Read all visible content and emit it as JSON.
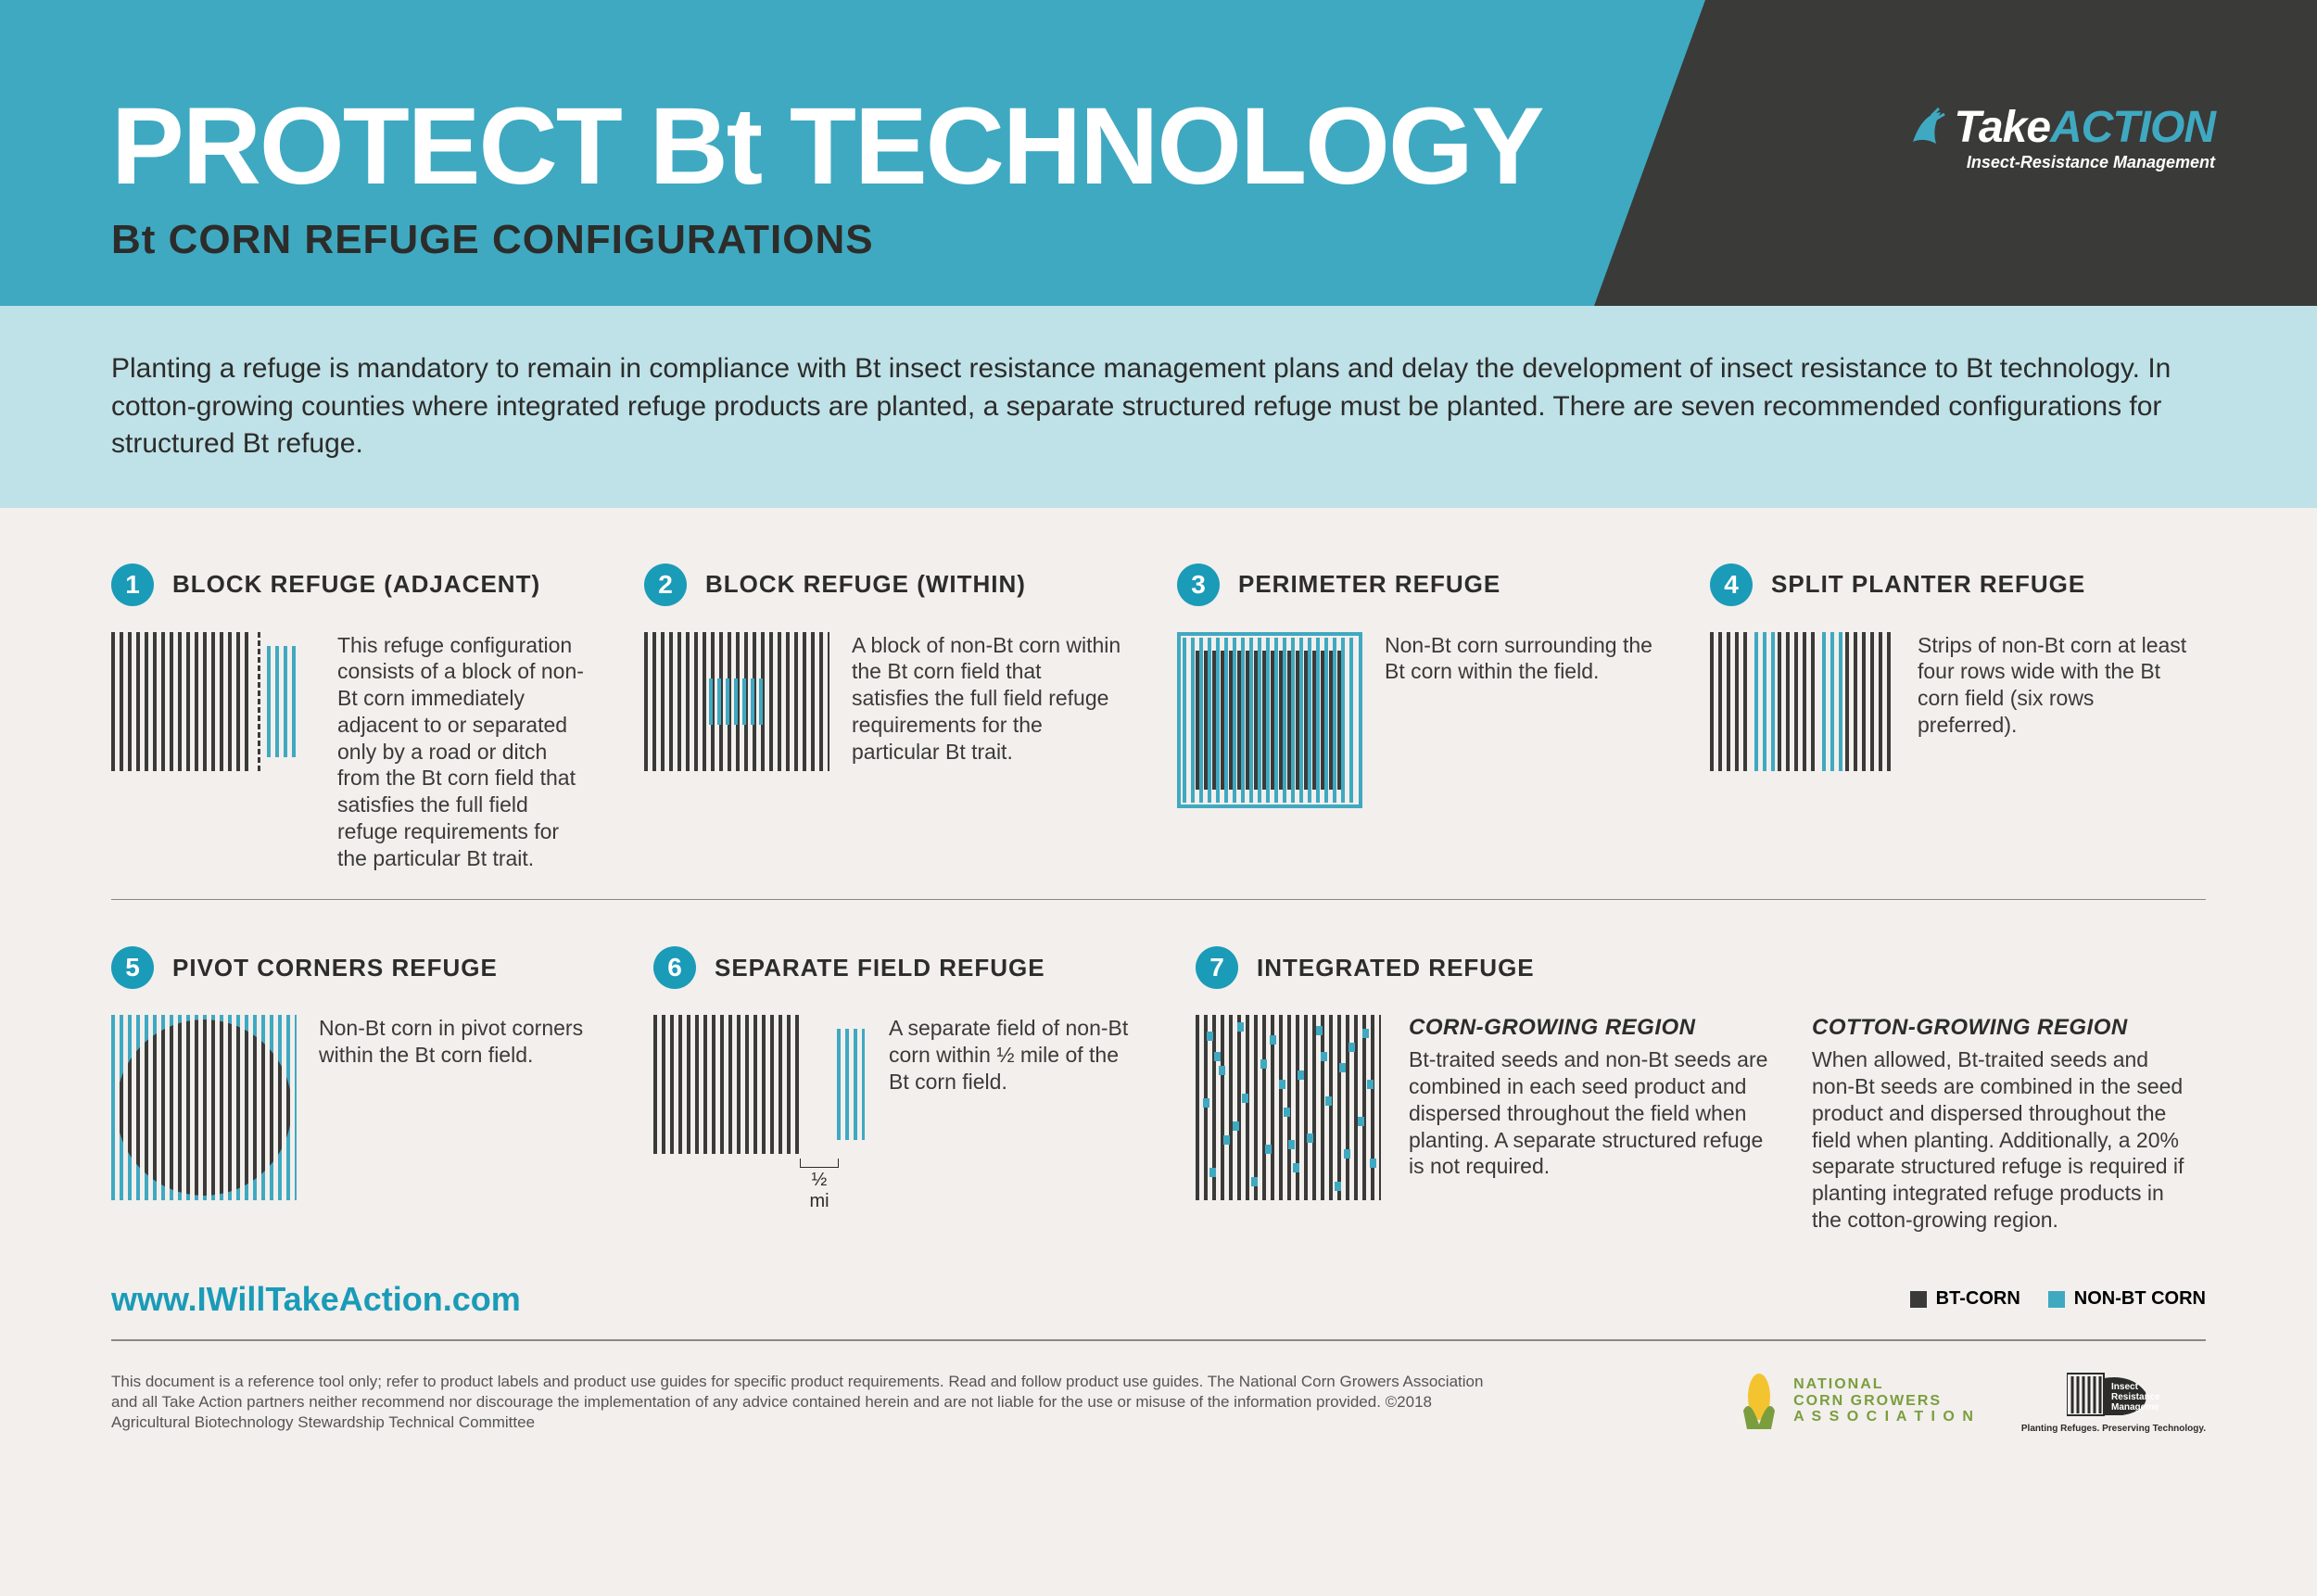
{
  "header": {
    "title": "PROTECT Bt TECHNOLOGY",
    "subtitle": "Bt CORN REFUGE CONFIGURATIONS",
    "logo_take": "Take",
    "logo_action": "ACTION",
    "logo_sub": "Insect-Resistance Management"
  },
  "colors": {
    "banner": "#3fa9c1",
    "banner_dark": "#3a3a38",
    "intro_bg": "#bfe1e8",
    "badge": "#1a9bb8",
    "bt_corn": "#3a3a38",
    "non_bt": "#3fa9c1",
    "page_bg": "#f2efec"
  },
  "intro": "Planting a refuge is mandatory to remain in compliance with Bt insect resistance management plans and delay the development of insect resistance to Bt technology. In cotton-growing counties where integrated refuge products are planted, a separate structured refuge must be planted. There are seven recommended configurations for structured Bt refuge.",
  "cards": {
    "c1": {
      "num": "1",
      "title": "BLOCK REFUGE (ADJACENT)",
      "desc": "This refuge configuration consists of a block of non-Bt corn immediately adjacent to or separated only by a road or ditch from the Bt corn field that satisfies the full field refuge requirements for the particular Bt trait."
    },
    "c2": {
      "num": "2",
      "title": "BLOCK REFUGE (WITHIN)",
      "desc": "A block of non-Bt corn within the Bt corn field that satisfies the full field refuge requirements for the particular Bt trait."
    },
    "c3": {
      "num": "3",
      "title": "PERIMETER REFUGE",
      "desc": "Non-Bt corn surrounding the Bt corn within the field."
    },
    "c4": {
      "num": "4",
      "title": "SPLIT PLANTER REFUGE",
      "desc": "Strips of non-Bt corn at least four rows wide with the Bt corn field (six rows preferred)."
    },
    "c5": {
      "num": "5",
      "title": "PIVOT CORNERS REFUGE",
      "desc": "Non-Bt corn in pivot corners within the Bt corn field."
    },
    "c6": {
      "num": "6",
      "title": "SEPARATE FIELD REFUGE",
      "desc": "A separate field of non-Bt corn within ½ mile of the Bt corn field.",
      "half_mi": "½ mi"
    },
    "c7": {
      "num": "7",
      "title": "INTEGRATED REFUGE",
      "region1_title": "CORN-GROWING REGION",
      "region1_desc": "Bt-traited seeds and non-Bt seeds are combined in each seed product and dispersed throughout the field when planting. A separate structured refuge is not required.",
      "region2_title": "COTTON-GROWING REGION",
      "region2_desc": "When allowed, Bt-traited seeds and non-Bt seeds are combined in the seed product and dispersed throughout the field when planting. Additionally, a 20% separate structured refuge is required if planting integrated refuge products in the cotton-growing region."
    }
  },
  "legend": {
    "bt": "BT-CORN",
    "nonbt": "NON-BT CORN"
  },
  "footer": {
    "url": "www.IWillTakeAction.com",
    "disclaimer": "This document is a reference tool only; refer to product labels and product use guides for specific product requirements. Read and follow product use guides. The National Corn Growers Association and all Take Action partners neither recommend nor discourage the implementation of any advice contained herein and are not liable for the use or misuse of the information provided. ©2018 Agricultural Biotechnology Stewardship Technical Committee",
    "ncga": "NATIONAL CORN GROWERS ASSOCIATION",
    "irm_tag": "Planting Refuges. Preserving Technology."
  }
}
